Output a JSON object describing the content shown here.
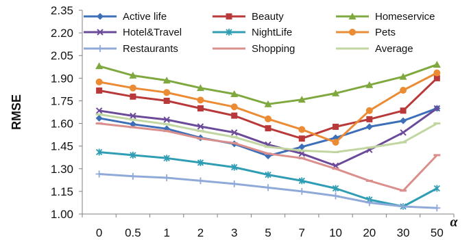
{
  "chart_data": {
    "type": "line",
    "title": "",
    "xlabel": "α",
    "ylabel": "RMSE",
    "ylim": [
      1.0,
      2.35
    ],
    "yticks": [
      "1.00",
      "1.15",
      "1.30",
      "1.45",
      "1.60",
      "1.75",
      "1.90",
      "2.05",
      "2.20",
      "2.35"
    ],
    "categories": [
      "0",
      "0.5",
      "1",
      "2",
      "3",
      "5",
      "7",
      "10",
      "20",
      "30",
      "50"
    ],
    "grid": false,
    "legend_position": "top",
    "series": [
      {
        "name": "Active life",
        "color": "#3d6fb8",
        "marker": "diamond",
        "values": [
          1.635,
          1.595,
          1.565,
          1.505,
          1.465,
          1.385,
          1.445,
          1.505,
          1.578,
          1.618,
          1.7
        ]
      },
      {
        "name": "Beauty",
        "color": "#b9393a",
        "marker": "square",
        "values": [
          1.818,
          1.778,
          1.75,
          1.7,
          1.652,
          1.568,
          1.5,
          1.578,
          1.628,
          1.685,
          1.9
        ]
      },
      {
        "name": "Homeservice",
        "color": "#7fa83f",
        "marker": "triangle",
        "values": [
          1.98,
          1.918,
          1.885,
          1.835,
          1.795,
          1.728,
          1.758,
          1.8,
          1.855,
          1.91,
          1.99
        ]
      },
      {
        "name": "Hotel&Travel",
        "color": "#6b4a9a",
        "marker": "x",
        "values": [
          1.685,
          1.65,
          1.625,
          1.58,
          1.54,
          1.46,
          1.4,
          1.32,
          1.425,
          1.54,
          1.7
        ]
      },
      {
        "name": "NightLife",
        "color": "#2f9db4",
        "marker": "star",
        "values": [
          1.41,
          1.39,
          1.37,
          1.34,
          1.31,
          1.26,
          1.22,
          1.17,
          1.095,
          1.05,
          1.17
        ]
      },
      {
        "name": "Pets",
        "color": "#eb8b34",
        "marker": "circle",
        "values": [
          1.875,
          1.835,
          1.805,
          1.755,
          1.71,
          1.63,
          1.56,
          1.475,
          1.685,
          1.82,
          1.935
        ]
      },
      {
        "name": "Restaurants",
        "color": "#8fa9d8",
        "marker": "plus",
        "values": [
          1.265,
          1.25,
          1.24,
          1.22,
          1.2,
          1.175,
          1.15,
          1.12,
          1.075,
          1.05,
          1.04
        ]
      },
      {
        "name": "Shopping",
        "color": "#db8f8c",
        "marker": "dash",
        "values": [
          1.6,
          1.575,
          1.55,
          1.5,
          1.47,
          1.4,
          1.37,
          1.3,
          1.22,
          1.155,
          1.39
        ]
      },
      {
        "name": "Average",
        "color": "#c1d6a0",
        "marker": "dash",
        "values": [
          1.66,
          1.625,
          1.595,
          1.55,
          1.51,
          1.445,
          1.42,
          1.41,
          1.44,
          1.475,
          1.6
        ]
      }
    ]
  }
}
